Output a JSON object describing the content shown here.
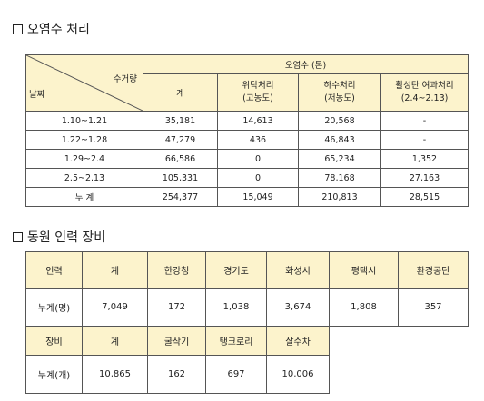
{
  "section1": {
    "title": "오염수 처리",
    "table": {
      "corner_top": "수거량",
      "corner_bottom": "날짜",
      "group_header": "오염수 (톤)",
      "col_total": "계",
      "col_consign_line1": "위탁처리",
      "col_consign_line2": "(고농도)",
      "col_sewage_line1": "하수처리",
      "col_sewage_line2": "(저농도)",
      "col_carbon_line1": "활성탄 여과처리",
      "col_carbon_line2": "(2.4~2.13)",
      "rows": [
        {
          "date": "1.10~1.21",
          "total": "35,181",
          "consign": "14,613",
          "sewage": "20,568",
          "carbon": "-"
        },
        {
          "date": "1.22~1.28",
          "total": "47,279",
          "consign": "436",
          "sewage": "46,843",
          "carbon": "-"
        },
        {
          "date": "1.29~2.4",
          "total": "66,586",
          "consign": "0",
          "sewage": "65,234",
          "carbon": "1,352"
        },
        {
          "date": "2.5~2.13",
          "total": "105,331",
          "consign": "0",
          "sewage": "78,168",
          "carbon": "27,163"
        },
        {
          "date": "누 계",
          "total": "254,377",
          "consign": "15,049",
          "sewage": "210,813",
          "carbon": "28,515"
        }
      ]
    }
  },
  "section2": {
    "title": "동원 인력 장비",
    "personnel": {
      "headers": [
        "인력",
        "계",
        "한강청",
        "경기도",
        "화성시",
        "평택시",
        "환경공단"
      ],
      "row": [
        "누계(명)",
        "7,049",
        "172",
        "1,038",
        "3,674",
        "1,808",
        "357"
      ]
    },
    "equipment": {
      "headers": [
        "장비",
        "계",
        "굴삭기",
        "탱크로리",
        "살수차"
      ],
      "row": [
        "누계(개)",
        "10,865",
        "162",
        "697",
        "10,006"
      ]
    }
  }
}
